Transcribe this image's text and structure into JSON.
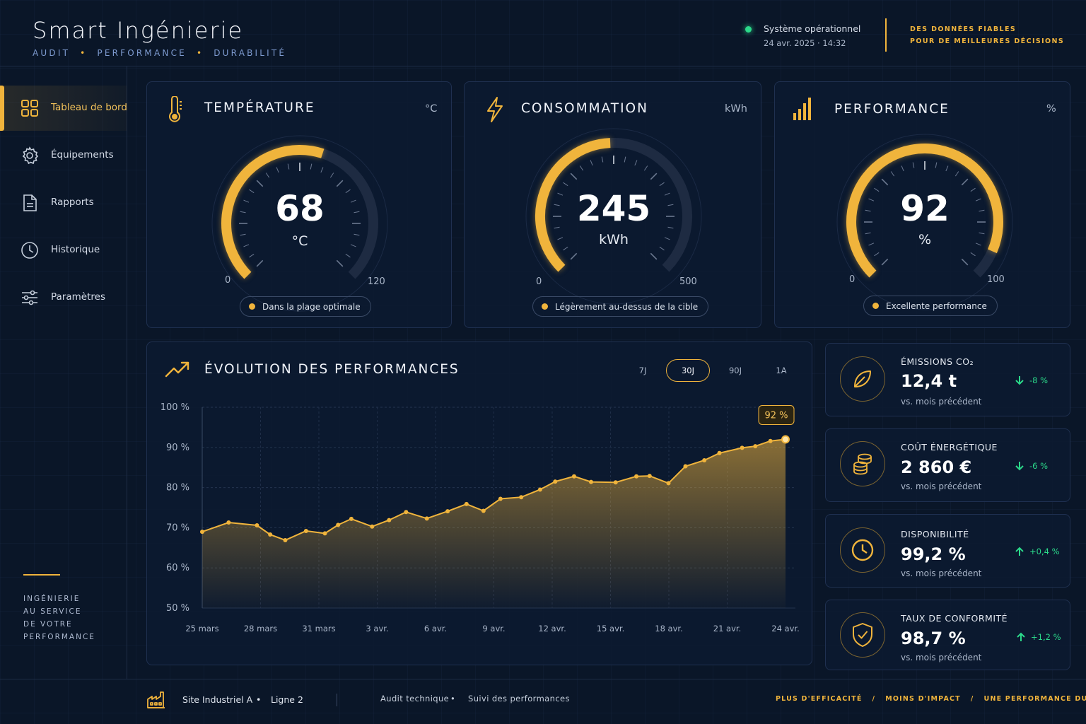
{
  "header": {
    "title": "Smart Ingénierie",
    "tags": [
      "AUDIT",
      "PERFORMANCE",
      "DURABILITÉ"
    ],
    "status": "Système opérationnel",
    "datetime": "24 avr. 2025  ·  14:32",
    "tagline_1": "DES DONNÉES FIABLES",
    "tagline_2": "POUR DE MEILLEURES DÉCISIONS",
    "status_color": "#2bd98a",
    "accent_color": "#f0b43c"
  },
  "sidebar": {
    "items": [
      {
        "label": "Tableau de bord",
        "icon": "grid-icon",
        "active": true
      },
      {
        "label": "Équipements",
        "icon": "gear-icon"
      },
      {
        "label": "Rapports",
        "icon": "document-icon"
      },
      {
        "label": "Historique",
        "icon": "clock-icon"
      },
      {
        "label": "Paramètres",
        "icon": "sliders-icon"
      }
    ],
    "motto": [
      "INGÉNIERIE",
      "AU SERVICE",
      "DE VOTRE",
      "PERFORMANCE"
    ]
  },
  "gauges": [
    {
      "title": "TEMPÉRATURE",
      "unit": "°C",
      "value": "68",
      "value_unit": "°C",
      "min": "0",
      "max": "120",
      "status": "Dans la plage optimale",
      "icon": "thermometer-icon",
      "fraction": 0.567
    },
    {
      "title": "CONSOMMATION",
      "unit": "kWh",
      "value": "245",
      "value_unit": "kWh",
      "min": "0",
      "max": "500",
      "status": "Légèrement au-dessus de la cible",
      "icon": "lightning-icon",
      "fraction": 0.49
    },
    {
      "title": "PERFORMANCE",
      "unit": "%",
      "value": "92",
      "value_unit": "%",
      "min": "0",
      "max": "100",
      "status": "Excellente performance",
      "icon": "bar-chart-icon",
      "fraction": 0.92
    }
  ],
  "chart": {
    "title": "ÉVOLUTION DES PERFORMANCES",
    "ranges": [
      "7J",
      "30J",
      "90J",
      "1A"
    ],
    "active_range": "30J",
    "callout": "92 %"
  },
  "chart_data": {
    "type": "area",
    "title": "ÉVOLUTION DES PERFORMANCES",
    "xlabel": "",
    "ylabel": "",
    "ylim": [
      50,
      100
    ],
    "yticks": [
      "100 %",
      "90 %",
      "80 %",
      "70 %",
      "60 %",
      "50 %"
    ],
    "ytick_values": [
      100,
      90,
      80,
      70,
      60,
      50
    ],
    "xticks": [
      "25 mars",
      "28 mars",
      "31 mars",
      "3 avr.",
      "6 avr.",
      "9 avr.",
      "12 avr.",
      "15 avr.",
      "18 avr.",
      "21 avr.",
      "24 avr."
    ],
    "x": [
      0,
      1.4,
      2.9,
      3.6,
      4.4,
      5.5,
      6.5,
      7.2,
      7.9,
      9.0,
      9.9,
      10.8,
      11.9,
      13.0,
      14.0,
      14.9,
      15.8,
      16.9,
      17.9,
      18.7,
      19.7,
      20.6,
      21.9,
      23.0,
      23.7,
      24.7,
      25.6,
      26.6,
      27.4,
      28.6,
      29.3,
      30.1,
      30.9
    ],
    "values": [
      69,
      71.3,
      70.6,
      68.3,
      66.9,
      69.2,
      68.6,
      70.7,
      72.2,
      70.3,
      71.9,
      73.9,
      72.3,
      74.1,
      75.9,
      74.2,
      77.2,
      77.6,
      79.5,
      81.5,
      82.8,
      81.4,
      81.3,
      82.8,
      82.9,
      81.1,
      85.3,
      86.8,
      88.6,
      89.9,
      90.3,
      91.6,
      92
    ],
    "color": "#f0b43c",
    "grid": true
  },
  "kpis": [
    {
      "label": "ÉMISSIONS CO₂",
      "value": "12,4 t",
      "sub": "vs. mois précédent",
      "delta": "-8 %",
      "direction": "down",
      "icon": "leaf-icon"
    },
    {
      "label": "COÛT ÉNERGÉTIQUE",
      "value": "2 860 €",
      "sub": "vs. mois précédent",
      "delta": "-6 %",
      "direction": "down",
      "icon": "coins-icon"
    },
    {
      "label": "DISPONIBILITÉ",
      "value": "99,2 %",
      "sub": "vs. mois précédent",
      "delta": "+0,4 %",
      "direction": "up",
      "icon": "clock-icon"
    },
    {
      "label": "TAUX DE CONFORMITÉ",
      "value": "98,7 %",
      "sub": "vs. mois précédent",
      "delta": "+1,2 %",
      "direction": "up",
      "icon": "shield-check-icon"
    }
  ],
  "footer": {
    "site": "Site Industriel A",
    "line": "Ligne 2",
    "audit": "Audit technique",
    "suivi": "Suivi des performances",
    "slogan_1": "PLUS D'EFFICACITÉ",
    "slogan_2": "MOINS D'IMPACT",
    "slogan_3": "UNE PERFORMANCE DURABLE"
  }
}
